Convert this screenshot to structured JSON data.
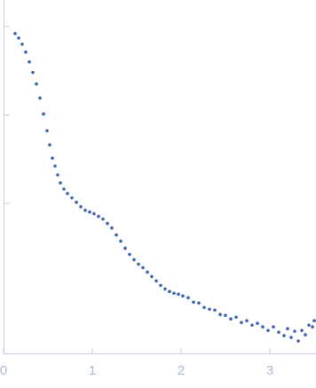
{
  "chart_data": {
    "type": "scatter",
    "x": [
      0.13,
      0.17,
      0.21,
      0.25,
      0.29,
      0.33,
      0.37,
      0.41,
      0.45,
      0.49,
      0.52,
      0.55,
      0.58,
      0.61,
      0.64,
      0.68,
      0.72,
      0.77,
      0.82,
      0.87,
      0.92,
      0.97,
      1.02,
      1.07,
      1.12,
      1.17,
      1.22,
      1.27,
      1.32,
      1.37,
      1.42,
      1.47,
      1.52,
      1.57,
      1.62,
      1.67,
      1.72,
      1.77,
      1.82,
      1.87,
      1.92,
      1.97,
      2.02,
      2.08,
      2.14,
      2.2,
      2.26,
      2.32,
      2.38,
      2.44,
      2.5,
      2.56,
      2.62,
      2.68,
      2.74,
      2.8,
      2.86,
      2.92,
      2.98,
      3.04,
      3.1,
      3.16,
      3.2,
      3.24,
      3.28,
      3.32,
      3.36,
      3.4,
      3.44,
      3.48,
      3.5
    ],
    "series": [
      {
        "color": "#3a62b0",
        "values": [
          2.92,
          2.87,
          2.8,
          2.71,
          2.6,
          2.48,
          2.35,
          2.19,
          2.01,
          1.82,
          1.66,
          1.51,
          1.42,
          1.32,
          1.23,
          1.16,
          1.11,
          1.06,
          1.01,
          0.96,
          0.92,
          0.9,
          0.88,
          0.85,
          0.82,
          0.77,
          0.72,
          0.64,
          0.57,
          0.49,
          0.42,
          0.36,
          0.31,
          0.27,
          0.22,
          0.17,
          0.12,
          0.07,
          0.03,
          0.0,
          -0.02,
          -0.03,
          -0.05,
          -0.07,
          -0.12,
          -0.13,
          -0.18,
          -0.2,
          -0.21,
          -0.26,
          -0.27,
          -0.31,
          -0.29,
          -0.35,
          -0.33,
          -0.38,
          -0.36,
          -0.4,
          -0.44,
          -0.4,
          -0.46,
          -0.5,
          -0.42,
          -0.52,
          -0.45,
          -0.56,
          -0.44,
          -0.49,
          -0.38,
          -0.4,
          -0.33
        ]
      }
    ],
    "xlim": [
      0,
      3.52
    ],
    "xticks": [
      0,
      1,
      2,
      3
    ],
    "ylim": [
      -0.7,
      3.3
    ],
    "yticks": [
      1,
      2,
      3
    ]
  }
}
